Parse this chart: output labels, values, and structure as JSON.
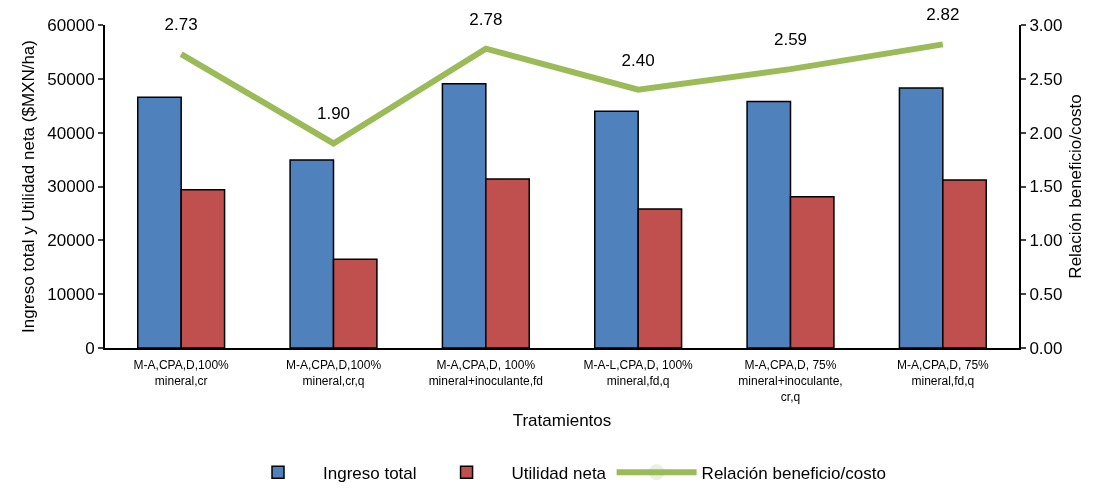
{
  "chart_data": {
    "type": "bar",
    "xlabel": "Tratamientos",
    "ylabel": "Ingreso total y Utilidad neta ($MXN/ha)",
    "y2label": "Relación beneficio/costo",
    "categories": [
      "M-A,CPA,D,100% mineral,cr",
      "M-A,CPA,D,100% mineral,cr,q",
      "M-A,CPA,D, 100% mineral+inoculante,fd",
      "M-A-L,CPA,D, 100% mineral,fd,q",
      "M-A,CPA,D, 75% mineral+inoculante, cr,q",
      "M-A,CPA,D, 75% mineral,fd,q"
    ],
    "series": [
      {
        "name": "Ingreso total",
        "color": "#4f81bd",
        "values": [
          46600,
          34900,
          49100,
          44000,
          45800,
          48300
        ]
      },
      {
        "name": "Utilidad neta",
        "color": "#c0504d",
        "values": [
          29400,
          16500,
          31400,
          25800,
          28100,
          31200
        ]
      },
      {
        "name": "Relación beneficio/costo",
        "type": "line",
        "axis": "y2",
        "color": "#9bbb59",
        "values": [
          2.73,
          1.9,
          2.78,
          2.4,
          2.59,
          2.82
        ],
        "value_labels": [
          "2.73",
          "1.90",
          "2.78",
          "2.40",
          "2.59",
          "2.82"
        ]
      }
    ],
    "ylim": [
      0,
      60000
    ],
    "yticks": [
      0,
      10000,
      20000,
      30000,
      40000,
      50000,
      60000
    ],
    "y2lim": [
      0,
      3
    ],
    "y2ticks": [
      {
        "value": 0,
        "label": "0.00"
      },
      {
        "value": 0.5,
        "label": "0.50"
      },
      {
        "value": 1,
        "label": "1.00"
      },
      {
        "value": 1.5,
        "label": "1.50"
      },
      {
        "value": 2,
        "label": "2.00"
      },
      {
        "value": 2.5,
        "label": "2.50"
      },
      {
        "value": 3,
        "label": "3.00"
      }
    ],
    "grid": false,
    "legend": "bottom"
  }
}
